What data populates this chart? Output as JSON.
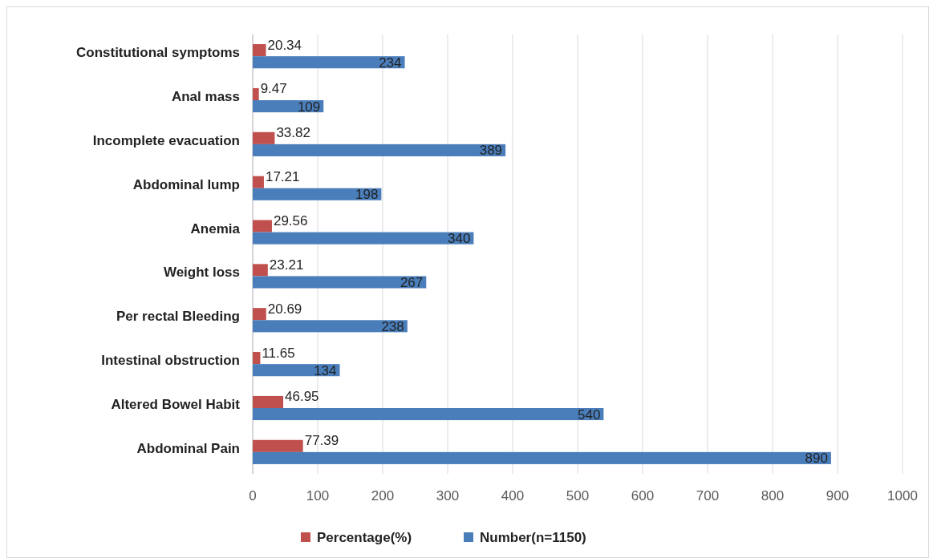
{
  "chart_data": {
    "type": "bar",
    "orientation": "horizontal",
    "categories": [
      "Constitutional symptoms",
      "Anal mass",
      "Incomplete evacuation",
      "Abdominal lump",
      "Anemia",
      "Weight loss",
      "Per rectal Bleeding",
      "Intestinal obstruction",
      "Altered Bowel Habit",
      "Abdominal Pain"
    ],
    "series": [
      {
        "name": "Percentage(%)",
        "color": "#c0504d",
        "values": [
          20.34,
          9.47,
          33.82,
          17.21,
          29.56,
          23.21,
          20.69,
          11.65,
          46.95,
          77.39
        ]
      },
      {
        "name": "Number(n=1150)",
        "color": "#4a7ebb",
        "values": [
          234,
          109,
          389,
          198,
          340,
          267,
          238,
          134,
          540,
          890
        ]
      }
    ],
    "xlim": [
      0,
      1000
    ],
    "xticks": [
      0,
      100,
      200,
      300,
      400,
      500,
      600,
      700,
      800,
      900,
      1000
    ],
    "grid": "x",
    "legend": "bottom",
    "data_labels": true
  }
}
